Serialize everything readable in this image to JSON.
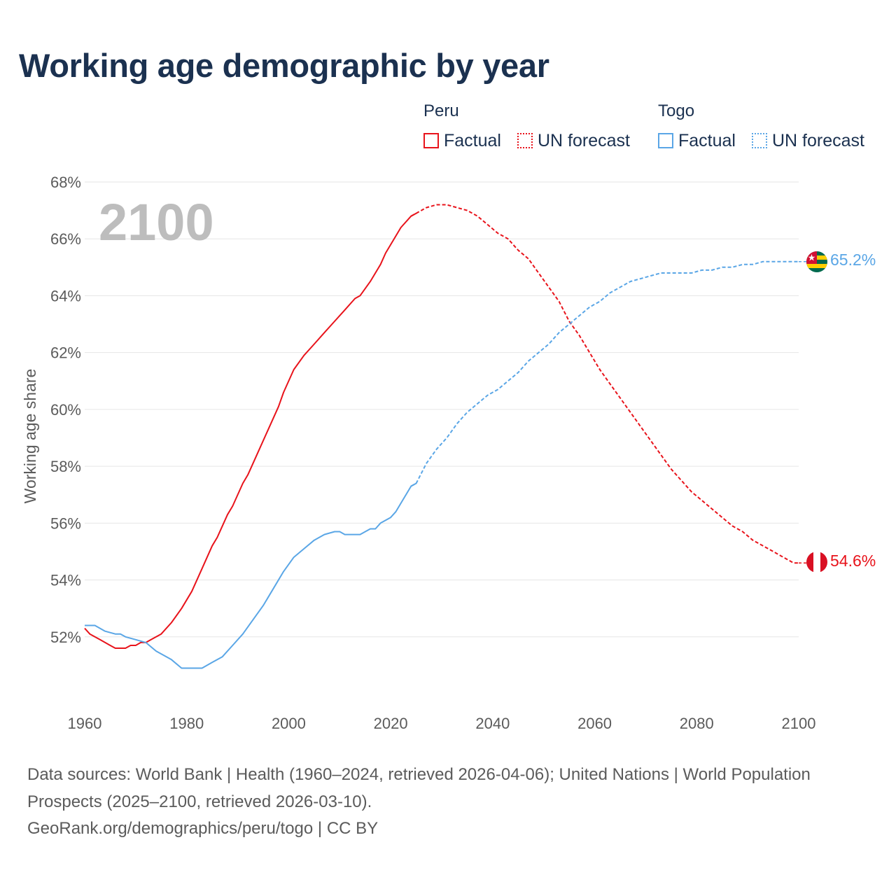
{
  "title": "Working age demographic by year",
  "legend": {
    "groups": [
      {
        "name": "Peru",
        "factual": "Factual",
        "forecast": "UN forecast",
        "color": "#e8131b"
      },
      {
        "name": "Togo",
        "factual": "Factual",
        "forecast": "UN forecast",
        "color": "#5aa6e6"
      }
    ]
  },
  "footer": {
    "sources": "Data sources: World Bank | Health (1960–2024, retrieved 2026-04-06); United Nations | World Population Prospects (2025–2100, retrieved 2026-03-10).",
    "credit": "GeoRank.org/demographics/peru/togo | CC BY"
  },
  "flags": {
    "togo": "togo-flag-icon",
    "peru": "peru-flag-icon"
  },
  "chart_data": {
    "type": "line",
    "title": "Working age demographic by year",
    "xlabel": "",
    "ylabel": "Working age share",
    "current_year": "2100",
    "xlim": [
      1960,
      2100
    ],
    "ylim": [
      50,
      68
    ],
    "x_ticks": [
      1960,
      1980,
      2000,
      2020,
      2040,
      2060,
      2080,
      2100
    ],
    "x_tick_labels": [
      "1960",
      "1980",
      "2000",
      "2020",
      "2040",
      "2060",
      "2080",
      "2100"
    ],
    "y_ticks": [
      52,
      54,
      56,
      58,
      60,
      62,
      64,
      66,
      68
    ],
    "y_tick_labels": [
      "52%",
      "54%",
      "56%",
      "58%",
      "60%",
      "62%",
      "64%",
      "66%",
      "68%"
    ],
    "grid": true,
    "forecast_start": 2025,
    "series": [
      {
        "name": "Peru",
        "color": "#e8131b",
        "end_label": "54.6%",
        "x": [
          1960,
          1961,
          1963,
          1965,
          1966,
          1968,
          1969,
          1970,
          1971,
          1972,
          1973,
          1975,
          1977,
          1979,
          1981,
          1983,
          1985,
          1986,
          1988,
          1989,
          1991,
          1992,
          1994,
          1996,
          1998,
          1999,
          2001,
          2003,
          2005,
          2007,
          2009,
          2011,
          2013,
          2014,
          2016,
          2018,
          2019,
          2021,
          2022,
          2024,
          2025,
          2027,
          2029,
          2031,
          2033,
          2035,
          2037,
          2039,
          2041,
          2043,
          2045,
          2047,
          2049,
          2051,
          2053,
          2055,
          2057,
          2059,
          2061,
          2063,
          2065,
          2067,
          2069,
          2071,
          2073,
          2075,
          2077,
          2079,
          2081,
          2083,
          2085,
          2087,
          2089,
          2091,
          2093,
          2095,
          2097,
          2099,
          2100
        ],
        "y": [
          52.3,
          52.1,
          51.9,
          51.7,
          51.6,
          51.6,
          51.7,
          51.7,
          51.8,
          51.8,
          51.9,
          52.1,
          52.5,
          53.0,
          53.6,
          54.4,
          55.2,
          55.5,
          56.3,
          56.6,
          57.4,
          57.7,
          58.5,
          59.3,
          60.1,
          60.6,
          61.4,
          61.9,
          62.3,
          62.7,
          63.1,
          63.5,
          63.9,
          64.0,
          64.5,
          65.1,
          65.5,
          66.1,
          66.4,
          66.8,
          66.9,
          67.1,
          67.2,
          67.2,
          67.1,
          67.0,
          66.8,
          66.5,
          66.2,
          66.0,
          65.6,
          65.3,
          64.8,
          64.3,
          63.8,
          63.1,
          62.6,
          62.0,
          61.4,
          60.9,
          60.4,
          59.9,
          59.4,
          58.9,
          58.4,
          57.9,
          57.5,
          57.1,
          56.8,
          56.5,
          56.2,
          55.9,
          55.7,
          55.4,
          55.2,
          55.0,
          54.8,
          54.6,
          54.6
        ]
      },
      {
        "name": "Togo",
        "color": "#5aa6e6",
        "end_label": "65.2%",
        "x": [
          1960,
          1962,
          1964,
          1966,
          1967,
          1968,
          1970,
          1972,
          1974,
          1977,
          1979,
          1981,
          1983,
          1985,
          1987,
          1989,
          1991,
          1993,
          1995,
          1997,
          1999,
          2001,
          2003,
          2005,
          2007,
          2009,
          2010,
          2011,
          2013,
          2014,
          2016,
          2017,
          2018,
          2020,
          2021,
          2022,
          2024,
          2025,
          2027,
          2029,
          2031,
          2033,
          2035,
          2037,
          2039,
          2041,
          2043,
          2045,
          2047,
          2049,
          2051,
          2053,
          2055,
          2057,
          2059,
          2061,
          2063,
          2065,
          2067,
          2069,
          2071,
          2073,
          2075,
          2077,
          2079,
          2081,
          2083,
          2085,
          2087,
          2089,
          2091,
          2093,
          2095,
          2097,
          2099,
          2100
        ],
        "y": [
          52.4,
          52.4,
          52.2,
          52.1,
          52.1,
          52.0,
          51.9,
          51.8,
          51.5,
          51.2,
          50.9,
          50.9,
          50.9,
          51.1,
          51.3,
          51.7,
          52.1,
          52.6,
          53.1,
          53.7,
          54.3,
          54.8,
          55.1,
          55.4,
          55.6,
          55.7,
          55.7,
          55.6,
          55.6,
          55.6,
          55.8,
          55.8,
          56.0,
          56.2,
          56.4,
          56.7,
          57.3,
          57.4,
          58.1,
          58.6,
          59.0,
          59.5,
          59.9,
          60.2,
          60.5,
          60.7,
          61.0,
          61.3,
          61.7,
          62.0,
          62.3,
          62.7,
          63.0,
          63.3,
          63.6,
          63.8,
          64.1,
          64.3,
          64.5,
          64.6,
          64.7,
          64.8,
          64.8,
          64.8,
          64.8,
          64.9,
          64.9,
          65.0,
          65.0,
          65.1,
          65.1,
          65.2,
          65.2,
          65.2,
          65.2,
          65.2
        ]
      }
    ]
  }
}
